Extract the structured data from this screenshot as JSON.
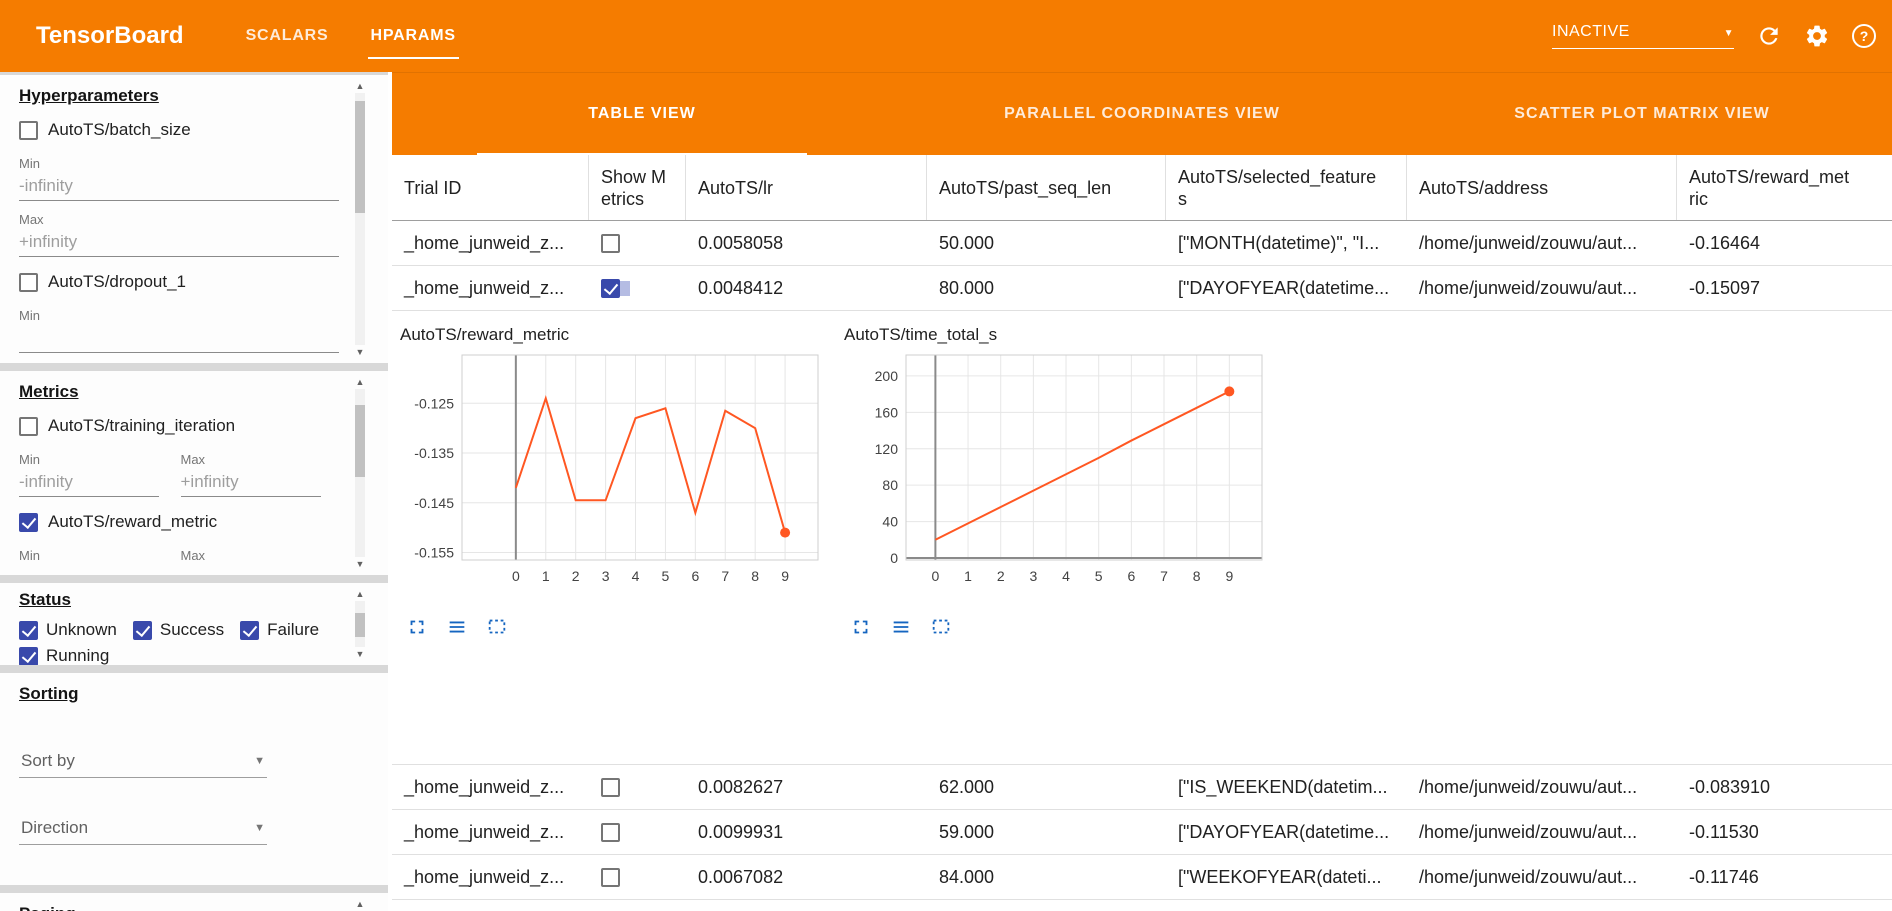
{
  "glyphs": {
    "dropdown_arrow": "▼",
    "scroll_up": "▲",
    "scroll_down": "▼",
    "help": "?"
  },
  "colors": {
    "header_orange": "#f57c00",
    "accent_indigo": "#3949ab",
    "chart_line": "#ff5722",
    "icon_blue": "#1565c0"
  },
  "header": {
    "title": "TensorBoard",
    "nav_tabs": [
      {
        "label": "SCALARS",
        "active": false
      },
      {
        "label": "HPARAMS",
        "active": true
      }
    ],
    "status_dropdown": {
      "value": "INACTIVE"
    }
  },
  "sidebar": {
    "hyperparameters": {
      "heading": "Hyperparameters",
      "param1_label": "AutoTS/batch_size",
      "param1_checked": false,
      "param1_min_label": "Min",
      "param1_min_placeholder": "-infinity",
      "param1_max_label": "Max",
      "param1_max_placeholder": "+infinity",
      "param2_label": "AutoTS/dropout_1",
      "param2_checked": false,
      "param2_min_label": "Min"
    },
    "metrics": {
      "heading": "Metrics",
      "metric1_label": "AutoTS/training_iteration",
      "metric1_checked": false,
      "metric1_min_label": "Min",
      "metric1_min_placeholder": "-infinity",
      "metric1_max_label": "Max",
      "metric1_max_placeholder": "+infinity",
      "metric2_label": "AutoTS/reward_metric",
      "metric2_checked": true,
      "metric2_min_label": "Min",
      "metric2_max_label": "Max"
    },
    "status": {
      "heading": "Status",
      "options": [
        {
          "label": "Unknown",
          "checked": true
        },
        {
          "label": "Success",
          "checked": true
        },
        {
          "label": "Failure",
          "checked": true
        },
        {
          "label": "Running",
          "checked": true
        }
      ]
    },
    "sorting": {
      "heading": "Sorting",
      "sort_by": "Sort by",
      "direction": "Direction"
    },
    "paging": {
      "heading": "Paging"
    }
  },
  "view_tabs": [
    {
      "label": "TABLE VIEW",
      "active": true
    },
    {
      "label": "PARALLEL COORDINATES VIEW",
      "active": false
    },
    {
      "label": "SCATTER PLOT MATRIX VIEW",
      "active": false
    }
  ],
  "table": {
    "columns": [
      "Trial ID",
      "Show Metrics",
      "AutoTS/lr",
      "AutoTS/past_seq_len",
      "AutoTS/selected_features",
      "AutoTS/address",
      "AutoTS/reward_metric"
    ],
    "rows": [
      {
        "trial_id": "_home_junweid_z...",
        "show_metrics": false,
        "lr": "0.0058058",
        "past_seq_len": "50.000",
        "selected_features": "[\"MONTH(datetime)\", \"I...",
        "address": "/home/junweid/zouwu/aut...",
        "reward_metric": "-0.16464"
      },
      {
        "trial_id": "_home_junweid_z...",
        "show_metrics": true,
        "lr": "0.0048412",
        "past_seq_len": "80.000",
        "selected_features": "[\"DAYOFYEAR(datetime...",
        "address": "/home/junweid/zouwu/aut...",
        "reward_metric": "-0.15097"
      },
      {
        "trial_id": "_home_junweid_z...",
        "show_metrics": false,
        "lr": "0.0082627",
        "past_seq_len": "62.000",
        "selected_features": "[\"IS_WEEKEND(datetim...",
        "address": "/home/junweid/zouwu/aut...",
        "reward_metric": "-0.083910"
      },
      {
        "trial_id": "_home_junweid_z...",
        "show_metrics": false,
        "lr": "0.0099931",
        "past_seq_len": "59.000",
        "selected_features": "[\"DAYOFYEAR(datetime...",
        "address": "/home/junweid/zouwu/aut...",
        "reward_metric": "-0.11530"
      },
      {
        "trial_id": "_home_junweid_z...",
        "show_metrics": false,
        "lr": "0.0067082",
        "past_seq_len": "84.000",
        "selected_features": "[\"WEEKOFYEAR(dateti...",
        "address": "/home/junweid/zouwu/aut...",
        "reward_metric": "-0.11746"
      }
    ]
  },
  "chart_data": [
    {
      "type": "line",
      "title": "AutoTS/reward_metric",
      "x": [
        0,
        1,
        2,
        3,
        4,
        5,
        6,
        7,
        8,
        9
      ],
      "values": [
        -0.142,
        -0.124,
        -0.1445,
        -0.1445,
        -0.128,
        -0.126,
        -0.147,
        -0.1265,
        -0.13,
        -0.151
      ],
      "xticks": [
        0,
        1,
        2,
        3,
        4,
        5,
        6,
        7,
        8,
        9
      ],
      "yticks": [
        -0.125,
        -0.135,
        -0.145,
        -0.155
      ],
      "ytick_labels": [
        "-0.125",
        "-0.135",
        "-0.145",
        "-0.155"
      ],
      "xlim": [
        -1.8,
        10.1
      ],
      "ylim": [
        -0.1565,
        -0.1153
      ],
      "axis_vline_x": 0,
      "line_color": "#ff5722",
      "endpoint_dot": true,
      "grid": true,
      "xlabel": "",
      "ylabel": ""
    },
    {
      "type": "line",
      "title": "AutoTS/time_total_s",
      "x": [
        0,
        1,
        2,
        3,
        4,
        5,
        6,
        7,
        8,
        9
      ],
      "values": [
        20,
        38,
        56,
        74,
        92,
        110,
        129,
        147,
        165,
        183
      ],
      "xticks": [
        0,
        1,
        2,
        3,
        4,
        5,
        6,
        7,
        8,
        9
      ],
      "yticks": [
        0,
        40,
        80,
        120,
        160,
        200
      ],
      "ytick_labels": [
        "0",
        "40",
        "80",
        "120",
        "160",
        "200"
      ],
      "xlim": [
        -0.9,
        10.0
      ],
      "ylim": [
        -2.2,
        223
      ],
      "axis_vline_x": 0,
      "axis_hline_y": 0,
      "line_color": "#ff5722",
      "endpoint_dot": true,
      "grid": true,
      "xlabel": "",
      "ylabel": ""
    }
  ]
}
